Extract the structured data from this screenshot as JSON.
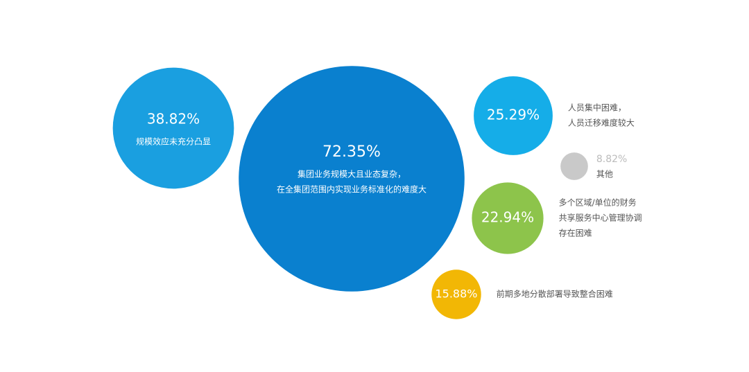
{
  "chart_data": {
    "type": "bubble",
    "categories": [
      [
        "规模效应未充分凸显"
      ],
      [
        "集团业务规模大且业态复杂，",
        "在全集团范围内实现业务标准化的难度大"
      ],
      [
        "人员集中困难，",
        "人员迁移难度较大"
      ],
      [
        "其他"
      ],
      [
        "多个区域/单位的财务",
        "共享服务中心管理协调",
        "存在困难"
      ],
      [
        "前期多地分散部署导致整合困难"
      ]
    ],
    "values": [
      38.82,
      72.35,
      25.29,
      8.82,
      22.94,
      15.88
    ],
    "value_labels": [
      "38.82%",
      "72.35%",
      "25.29%",
      "8.82%",
      "22.94%",
      "15.88%"
    ],
    "colors": [
      "#1a9fe0",
      "#0a80cf",
      "#15ade8",
      "#c9c9c9",
      "#8dc44b",
      "#f2b705"
    ]
  }
}
